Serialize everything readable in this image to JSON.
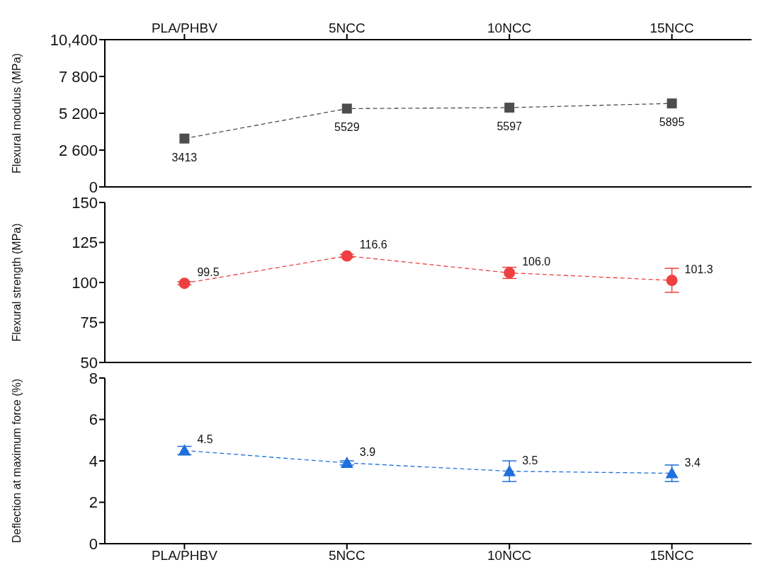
{
  "chart_data": [
    {
      "type": "line",
      "categories": [
        "PLA/PHBV",
        "5NCC",
        "10NCC",
        "15NCC"
      ],
      "ylabel": "Flexural modulus (MPa)",
      "ylim": [
        0,
        10400
      ],
      "yticks": [
        0,
        {
          "value": 2600,
          "label": "2 600"
        },
        {
          "value": 5200,
          "label": "5 200"
        },
        {
          "value": 7800,
          "label": "7 800"
        },
        {
          "value": 10400,
          "label": "10,400"
        }
      ],
      "series": [
        {
          "color": "#4d4d4d",
          "values": [
            3413,
            5529,
            5597,
            5895
          ]
        }
      ],
      "marker": "square",
      "line_style": "dashed",
      "data_labels": true,
      "grid": false,
      "legend": false
    },
    {
      "type": "line",
      "categories": [
        null,
        null,
        null,
        null
      ],
      "ylabel": "Flexural strength (MPa)",
      "ylim": [
        50,
        150
      ],
      "yticks": [
        50,
        75,
        100,
        125,
        150
      ],
      "tick_labels": "y",
      "series": [
        {
          "color": "#ee4040",
          "values": [
            99.5,
            116.6,
            106.0,
            101.3
          ],
          "value_labels": [
            "99.5",
            "116.6",
            "106.0",
            "101.3"
          ],
          "errors": [
            1,
            1,
            3.5,
            7.5
          ]
        }
      ],
      "marker": "circle",
      "line_style": "dashed",
      "grid": false,
      "legend": false
    },
    {
      "type": "line",
      "categories": [
        "PLA/PHBV",
        "5NCC",
        "10NCC",
        "15NCC"
      ],
      "ylabel": "Deflection at maximum force (%)",
      "ylim": [
        0,
        8
      ],
      "yticks": [
        0,
        2,
        4,
        6,
        8
      ],
      "series": [
        {
          "color": "#1f6fdc",
          "values": [
            4.5,
            3.9,
            3.5,
            3.4
          ],
          "errors": [
            0.2,
            0.1,
            0.5,
            0.4
          ]
        }
      ],
      "marker": "triangle",
      "line_style": "dashed",
      "data_labels": true,
      "grid": false,
      "legend": false
    }
  ]
}
